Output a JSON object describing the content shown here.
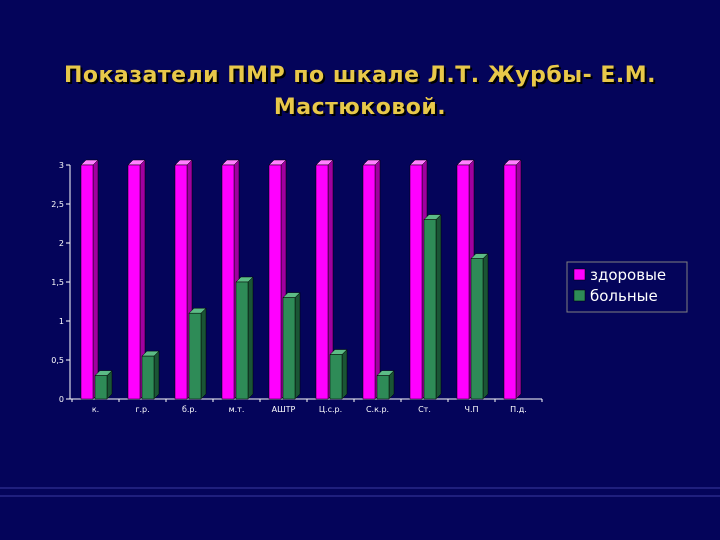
{
  "colors": {
    "background": "#04045a",
    "title": "#e8c84a",
    "series_1_front": "#ff00ff",
    "series_1_side": "#a000a0",
    "series_1_top": "#ff80ff",
    "series_2_front": "#2e8b57",
    "series_2_side": "#1a5535",
    "series_2_top": "#5cbc86",
    "axis": "#ffffff",
    "legend_border": "#808080"
  },
  "chart_data": {
    "type": "bar",
    "title": "Показатели ПМР по шкале Л.Т. Журбы- Е.М. Мастюковой.",
    "xlabel": "",
    "ylabel": "",
    "ylim": [
      0,
      3
    ],
    "yticks": [
      "0",
      "0,5",
      "1",
      "1,5",
      "2",
      "2,5",
      "3"
    ],
    "ytick_values": [
      0,
      0.5,
      1,
      1.5,
      2,
      2.5,
      3
    ],
    "grid": false,
    "legend_position": "right",
    "categories": [
      "к.",
      "г.р.",
      "б.р.",
      "м.т.",
      "АШТР",
      "Ц.с.р.",
      "С.к.р.",
      "Ст.",
      "Ч.П",
      "П.д."
    ],
    "series": [
      {
        "name": "здоровые",
        "values": [
          3,
          3,
          3,
          3,
          3,
          3,
          3,
          3,
          3,
          3
        ]
      },
      {
        "name": "больные",
        "values": [
          0.3,
          0.55,
          1.1,
          1.5,
          1.3,
          0.57,
          0.3,
          2.3,
          1.8,
          0
        ]
      }
    ]
  }
}
